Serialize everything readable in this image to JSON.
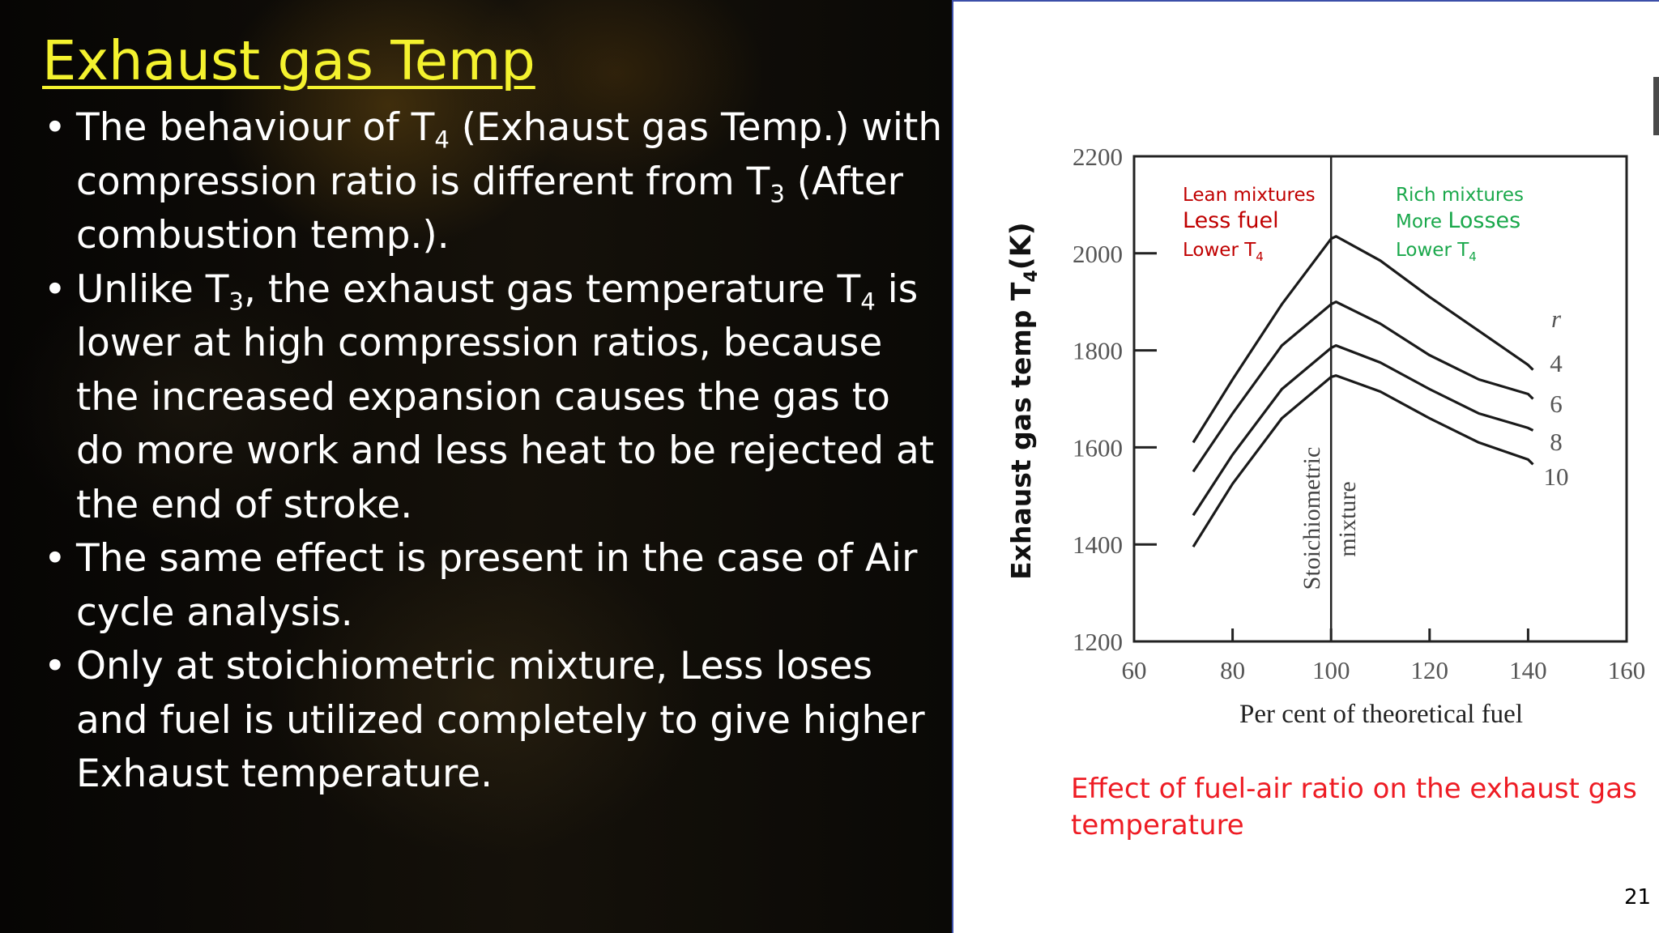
{
  "slide": {
    "title": "Exhaust gas Temp",
    "page_number": "21",
    "title_color": "#f4f22e"
  },
  "bullets": [
    {
      "segments": [
        {
          "t": "The behaviour of T"
        },
        {
          "t": "4",
          "sub": true
        },
        {
          "t": " (Exhaust gas Temp.) with compression ratio is different from T"
        },
        {
          "t": "3",
          "sub": true
        },
        {
          "t": " (After combustion temp.)."
        }
      ]
    },
    {
      "segments": [
        {
          "t": "Unlike T"
        },
        {
          "t": "3",
          "sub": true
        },
        {
          "t": ", the exhaust gas temperature T"
        },
        {
          "t": "4",
          "sub": true
        },
        {
          "t": " is lower at high compression ratios, because the increased expansion causes the gas to do more work and less heat to be rejected at the end of stroke."
        }
      ]
    },
    {
      "segments": [
        {
          "t": "The same effect is present in the case of Air cycle analysis."
        }
      ]
    },
    {
      "segments": [
        {
          "t": "Only at stoichiometric mixture, Less loses and fuel is utilized completely to give higher Exhaust temperature."
        }
      ]
    }
  ],
  "figure": {
    "caption": "Effect of fuel-air ratio on the exhaust gas temperature",
    "caption_color": "#ee1c24"
  },
  "chart_data": {
    "type": "line",
    "xlabel": "Per cent of theoretical fuel",
    "ylabel": "Exhaust gas temp T",
    "ylabel_sub": "4",
    "ylabel_suffix": "(K)",
    "xlim": [
      60,
      160
    ],
    "ylim": [
      1200,
      2200
    ],
    "xticks": [
      60,
      80,
      100,
      120,
      140,
      160
    ],
    "yticks": [
      1200,
      1400,
      1600,
      1800,
      2000,
      2200
    ],
    "grid": false,
    "legend_title": "r",
    "series": [
      {
        "name": "4",
        "x": [
          72,
          80,
          90,
          100,
          101,
          110,
          120,
          130,
          140,
          141
        ],
        "y": [
          1610,
          1740,
          1895,
          2030,
          2035,
          1985,
          1910,
          1840,
          1770,
          1760
        ]
      },
      {
        "name": "6",
        "x": [
          72,
          80,
          90,
          100,
          101,
          110,
          120,
          130,
          140,
          141
        ],
        "y": [
          1550,
          1670,
          1810,
          1895,
          1900,
          1855,
          1790,
          1740,
          1710,
          1700
        ]
      },
      {
        "name": "8",
        "x": [
          72,
          80,
          90,
          100,
          101,
          110,
          120,
          130,
          140,
          141
        ],
        "y": [
          1460,
          1585,
          1720,
          1805,
          1810,
          1775,
          1720,
          1670,
          1640,
          1635
        ]
      },
      {
        "name": "10",
        "x": [
          72,
          80,
          90,
          100,
          101,
          110,
          120,
          130,
          140,
          141
        ],
        "y": [
          1395,
          1525,
          1660,
          1745,
          1748,
          1715,
          1660,
          1610,
          1575,
          1565
        ]
      }
    ],
    "vline": {
      "x": 100,
      "label_left": "Stoichiometric",
      "label_right": "mixture"
    },
    "annotations": {
      "lean": {
        "line1": "Lean mixtures",
        "line2": "Less fuel",
        "line3": "Lower T",
        "line3_sub": "4",
        "color": "#c00000"
      },
      "rich": {
        "line1": "Rich mixtures",
        "line2_pre": "More ",
        "line2_emph": "Losses",
        "line3": "Lower T",
        "line3_sub": "4",
        "color": "#1aa84b"
      }
    }
  }
}
